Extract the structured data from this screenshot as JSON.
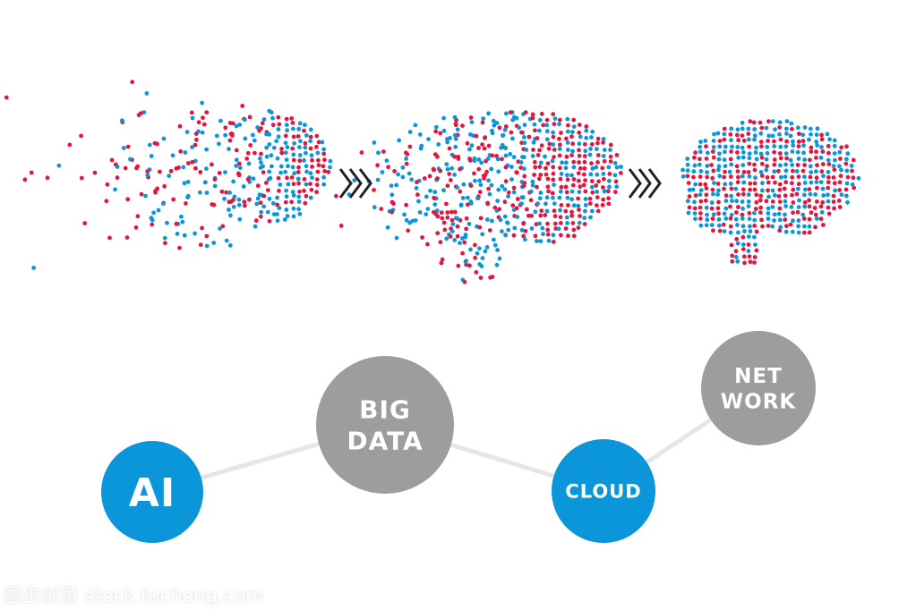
{
  "colors": {
    "blue": "#0a96d8",
    "red": "#e2173f",
    "gray": "#9d9d9f",
    "connector": "#e6e6e6",
    "arrow": "#222222"
  },
  "brains": [
    {
      "name": "scattered-brain",
      "stage": "dispersed"
    },
    {
      "name": "forming-brain",
      "stage": "partially-formed"
    },
    {
      "name": "complete-brain",
      "stage": "formed"
    }
  ],
  "arrows": [
    {
      "icon": "triple-chevron-right-icon"
    },
    {
      "icon": "triple-chevron-right-icon"
    }
  ],
  "nodes": [
    {
      "id": "ai",
      "lines": [
        "AI"
      ],
      "color": "blue"
    },
    {
      "id": "big-data",
      "lines": [
        "BIG",
        "DATA"
      ],
      "color": "gray"
    },
    {
      "id": "cloud",
      "lines": [
        "CLOUD"
      ],
      "color": "blue"
    },
    {
      "id": "network",
      "lines": [
        "NET",
        "WORK"
      ],
      "color": "gray"
    }
  ],
  "watermark": "图虫创意 stock.tuchong.com"
}
